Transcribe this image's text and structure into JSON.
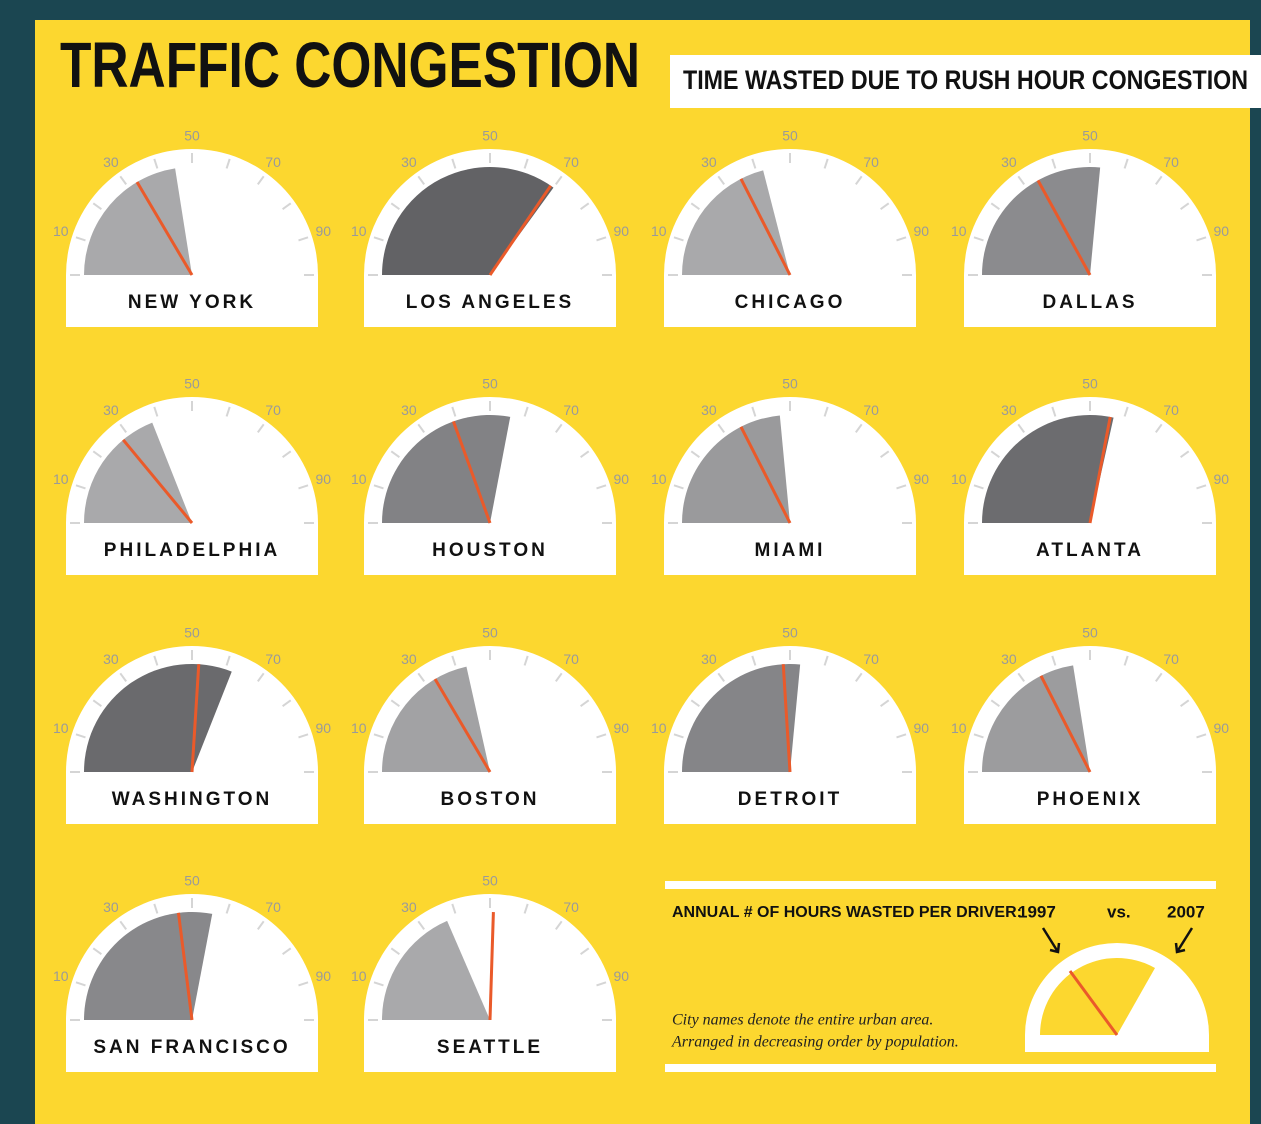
{
  "chart_data": {
    "type": "gauge",
    "title": "TRAFFIC CONGESTION",
    "subtitle": "TIME WASTED DUE TO RUSH HOUR CONGESTION",
    "categories": [
      "NEW  YORK",
      "LOS ANGELES",
      "CHICAGO",
      "DALLAS",
      "PHILADELPHIA",
      "HOUSTON",
      "MIAMI",
      "ATLANTA",
      "WASHINGTON",
      "BOSTON",
      "DETROIT",
      "PHOENIX",
      "SAN FRANCISCO",
      "SEATTLE"
    ],
    "series": [
      {
        "name": "1997",
        "color": "#ea5a2a",
        "values": [
          33,
          69,
          35,
          34,
          28,
          39,
          35,
          56,
          52,
          33,
          48,
          35,
          46,
          51
        ]
      },
      {
        "name": "2007",
        "values": [
          45,
          70,
          42,
          53,
          38,
          56,
          47,
          57,
          62,
          43,
          53,
          45,
          56,
          37
        ],
        "colors": [
          "#a9a9ab",
          "#626265",
          "#a9a9ab",
          "#8b8b8e",
          "#a9a9ab",
          "#828285",
          "#9a9a9c",
          "#6c6c6f",
          "#6a6a6d",
          "#a2a2a4",
          "#858588",
          "#9c9c9e",
          "#88888b",
          "#a9a9ab"
        ]
      }
    ],
    "xlim": [
      0,
      100
    ],
    "ticks": [
      10,
      30,
      50,
      70,
      90
    ],
    "minor_ticks": [
      0,
      20,
      40,
      60,
      80,
      100
    ],
    "legend_label": "ANNUAL # OF HOURS WASTED PER DRIVER:",
    "legend_separator": "vs.",
    "notes": [
      "City names denote the entire urban area.",
      "Arranged in decreasing order by population."
    ]
  }
}
